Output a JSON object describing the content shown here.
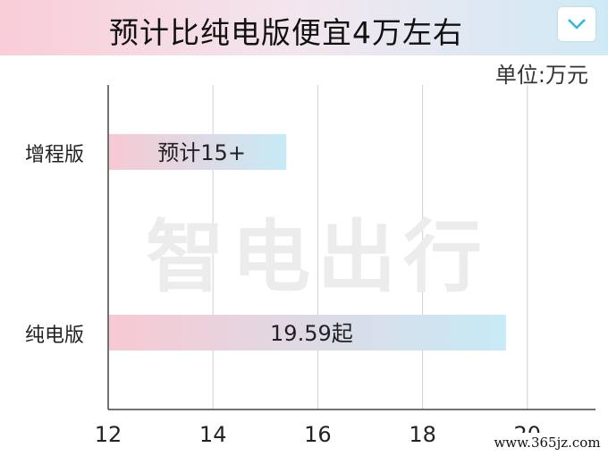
{
  "banner": {
    "title": "预计比纯电版便宜4万左右"
  },
  "chart_data": {
    "type": "bar",
    "orientation": "horizontal",
    "unit_label": "单位:万元",
    "categories": [
      "增程版",
      "纯电版"
    ],
    "values": [
      15.4,
      19.59
    ],
    "data_labels": [
      "预计15+",
      "19.59起"
    ],
    "x_ticks": [
      "12",
      "14",
      "16",
      "18",
      "20"
    ],
    "xlim": [
      12,
      21.3
    ],
    "grid": true,
    "bar_gradient": [
      "#f7c9d3",
      "#c6eaf6"
    ]
  },
  "watermark": {
    "text": "智电出行",
    "url": "www.365jz.com"
  }
}
